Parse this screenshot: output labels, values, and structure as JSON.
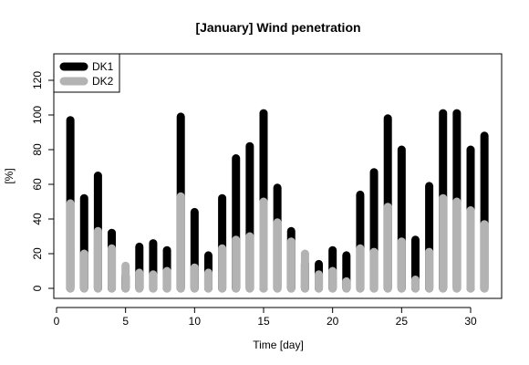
{
  "chart_data": {
    "type": "bar",
    "title": "[January] Wind penetration",
    "xlabel": "Time [day]",
    "ylabel": "[%]",
    "xlim": [
      0,
      32
    ],
    "ylim": [
      -5,
      132
    ],
    "x_ticks": [
      0,
      5,
      10,
      15,
      20,
      25,
      30
    ],
    "y_ticks": [
      0,
      20,
      40,
      60,
      80,
      100,
      120
    ],
    "grid": false,
    "legend_position": "top-left",
    "x": [
      1,
      2,
      3,
      4,
      5,
      6,
      7,
      8,
      9,
      10,
      11,
      12,
      13,
      14,
      15,
      16,
      17,
      18,
      19,
      20,
      21,
      22,
      23,
      24,
      25,
      26,
      27,
      28,
      29,
      30,
      31
    ],
    "series": [
      {
        "name": "DK1",
        "color": "#000000",
        "values": [
          97,
          52,
          65,
          32,
          7,
          24,
          26,
          22,
          99,
          44,
          19,
          52,
          75,
          82,
          101,
          58,
          33,
          14,
          14,
          22,
          19,
          54,
          67,
          98,
          80,
          28,
          59,
          101,
          101,
          80,
          88
        ]
      },
      {
        "name": "DK2",
        "color": "#b3b3b3",
        "values": [
          49,
          20,
          33,
          23,
          13,
          9,
          8,
          10,
          53,
          12,
          9,
          23,
          28,
          30,
          50,
          38,
          27,
          20,
          8,
          10,
          4,
          23,
          21,
          47,
          27,
          5,
          21,
          52,
          50,
          45,
          37
        ]
      }
    ]
  }
}
